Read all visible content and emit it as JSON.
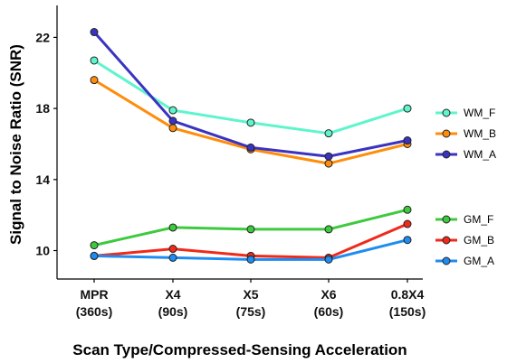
{
  "chart_data": {
    "type": "line",
    "title": "",
    "xlabel": "Scan Type/Compressed-Sensing Acceleration",
    "ylabel": "Signal to Noise Ratio (SNR)",
    "categories": [
      {
        "line1": "MPR",
        "line2": "(360s)"
      },
      {
        "line1": "X4",
        "line2": "(90s)"
      },
      {
        "line1": "X5",
        "line2": "(75s)"
      },
      {
        "line1": "X6",
        "line2": "(60s)"
      },
      {
        "line1": "0.8X4",
        "line2": "(150s)"
      }
    ],
    "yticks": [
      10,
      14,
      18,
      22
    ],
    "ylim": [
      8.4,
      23.8
    ],
    "grid": false,
    "legend_placement": "right",
    "legend_groups": [
      [
        "WM_F",
        "WM_B",
        "WM_A"
      ],
      [
        "GM_F",
        "GM_B",
        "GM_A"
      ]
    ],
    "series": [
      {
        "name": "WM_F",
        "color": "#5ef5cc",
        "values": [
          20.7,
          17.9,
          17.2,
          16.6,
          18.0
        ]
      },
      {
        "name": "WM_B",
        "color": "#ff8c0a",
        "values": [
          19.6,
          16.9,
          15.7,
          14.9,
          16.0
        ]
      },
      {
        "name": "WM_A",
        "color": "#3a33c2",
        "values": [
          22.3,
          17.3,
          15.8,
          15.3,
          16.2
        ]
      },
      {
        "name": "GM_F",
        "color": "#3ec93e",
        "values": [
          10.3,
          11.3,
          11.2,
          11.2,
          12.3
        ]
      },
      {
        "name": "GM_B",
        "color": "#f02a1a",
        "values": [
          9.7,
          10.1,
          9.7,
          9.6,
          11.5
        ]
      },
      {
        "name": "GM_A",
        "color": "#1e8cf0",
        "values": [
          9.7,
          9.6,
          9.5,
          9.5,
          10.6
        ]
      }
    ]
  }
}
